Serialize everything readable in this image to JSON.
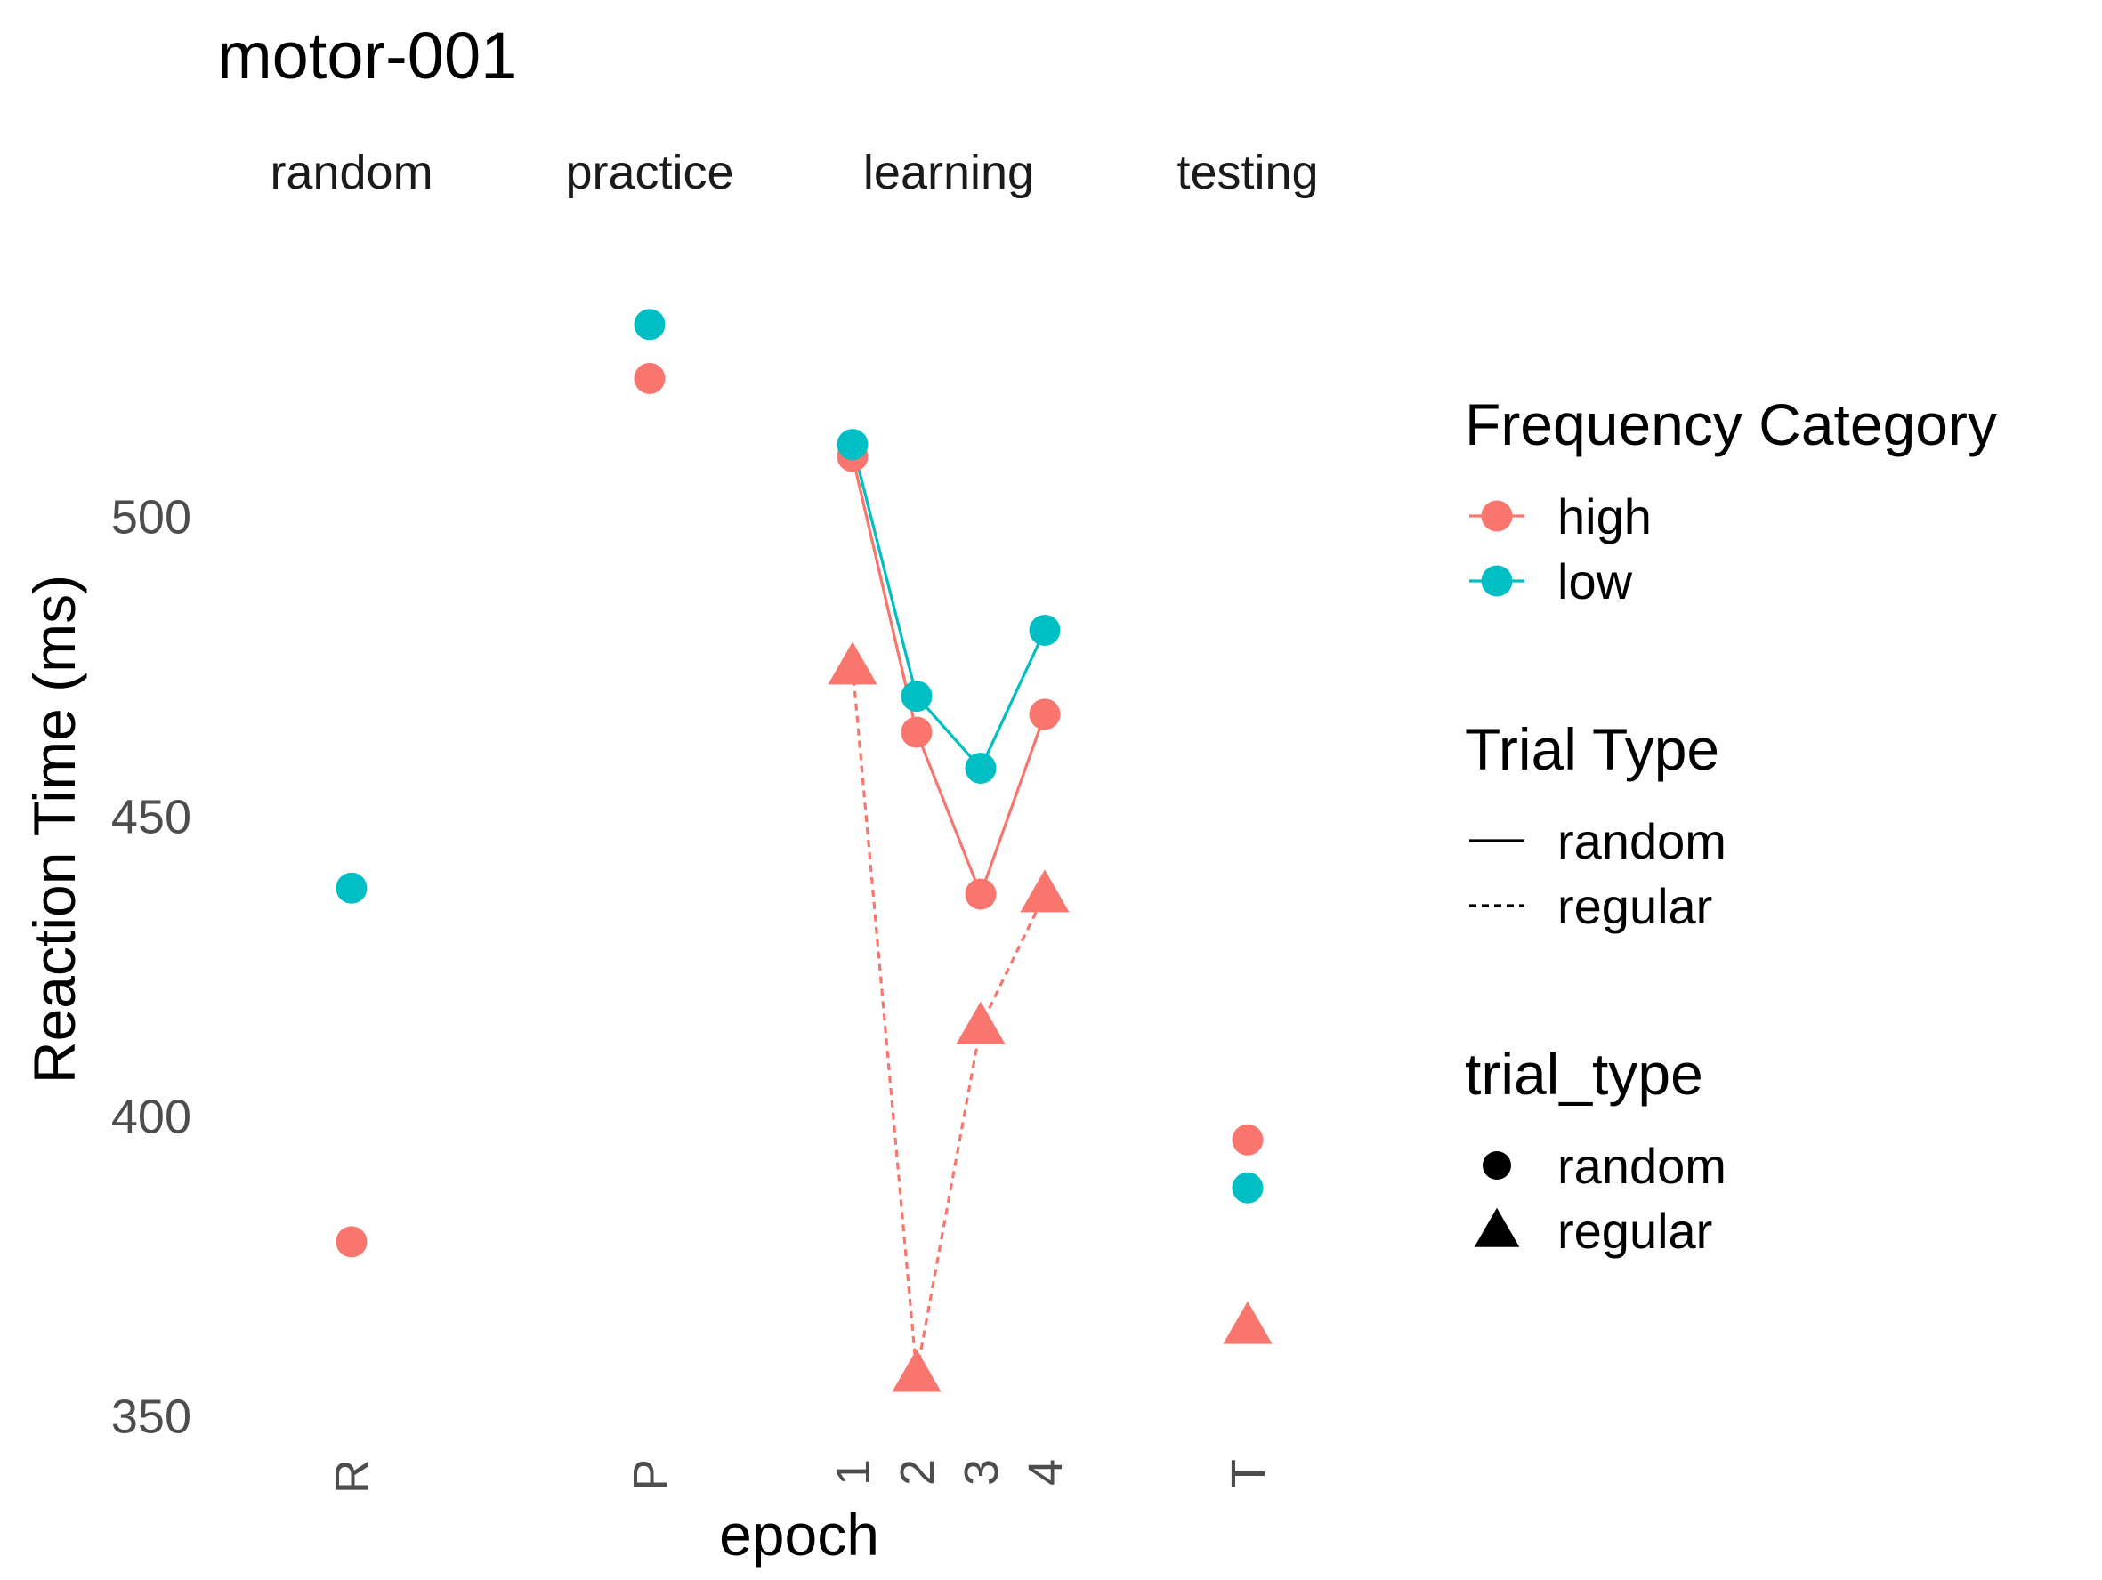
{
  "chart_data": {
    "type": "scatter",
    "title": "motor-001",
    "xlabel": "epoch",
    "ylabel": "Reaction Time (ms)",
    "ylim": [
      345,
      552
    ],
    "yticks": [
      350,
      400,
      450,
      500
    ],
    "grid": false,
    "legend_position": "right",
    "facets": [
      {
        "label": "random",
        "ticks": [
          "R"
        ]
      },
      {
        "label": "practice",
        "ticks": [
          "P"
        ]
      },
      {
        "label": "learning",
        "ticks": [
          "1",
          "2",
          "3",
          "4"
        ]
      },
      {
        "label": "testing",
        "ticks": [
          "T"
        ]
      }
    ],
    "series": [
      {
        "name": "high",
        "trial_type": "random",
        "color": "#F8766D",
        "shape": "circle",
        "line": "solid",
        "points": [
          {
            "facet": "random",
            "x": "R",
            "y": 379
          },
          {
            "facet": "practice",
            "x": "P",
            "y": 523
          },
          {
            "facet": "learning",
            "x": "1",
            "y": 510
          },
          {
            "facet": "learning",
            "x": "2",
            "y": 464
          },
          {
            "facet": "learning",
            "x": "3",
            "y": 437
          },
          {
            "facet": "learning",
            "x": "4",
            "y": 467
          },
          {
            "facet": "testing",
            "x": "T",
            "y": 396
          }
        ]
      },
      {
        "name": "low",
        "trial_type": "random",
        "color": "#00BFC4",
        "shape": "circle",
        "line": "solid",
        "points": [
          {
            "facet": "random",
            "x": "R",
            "y": 438
          },
          {
            "facet": "practice",
            "x": "P",
            "y": 532
          },
          {
            "facet": "learning",
            "x": "1",
            "y": 512
          },
          {
            "facet": "learning",
            "x": "2",
            "y": 470
          },
          {
            "facet": "learning",
            "x": "3",
            "y": 458
          },
          {
            "facet": "learning",
            "x": "4",
            "y": 481
          },
          {
            "facet": "testing",
            "x": "T",
            "y": 388
          }
        ]
      },
      {
        "name": "high",
        "trial_type": "regular",
        "color": "#F8766D",
        "shape": "triangle",
        "line": "dashed",
        "points": [
          {
            "facet": "learning",
            "x": "1",
            "y": 475
          },
          {
            "facet": "learning",
            "x": "2",
            "y": 357
          },
          {
            "facet": "learning",
            "x": "3",
            "y": 415
          },
          {
            "facet": "learning",
            "x": "4",
            "y": 437
          },
          {
            "facet": "testing",
            "x": "T",
            "y": 365
          }
        ]
      }
    ],
    "legends": [
      {
        "title": "Frequency Category",
        "kind": "color",
        "items": [
          {
            "label": "high",
            "color": "#F8766D"
          },
          {
            "label": "low",
            "color": "#00BFC4"
          }
        ]
      },
      {
        "title": "Trial Type",
        "kind": "linetype",
        "items": [
          {
            "label": "random",
            "line": "solid"
          },
          {
            "label": "regular",
            "line": "dashed"
          }
        ]
      },
      {
        "title": "trial_type",
        "kind": "shape",
        "items": [
          {
            "label": "random",
            "shape": "circle"
          },
          {
            "label": "regular",
            "shape": "triangle"
          }
        ]
      }
    ]
  }
}
